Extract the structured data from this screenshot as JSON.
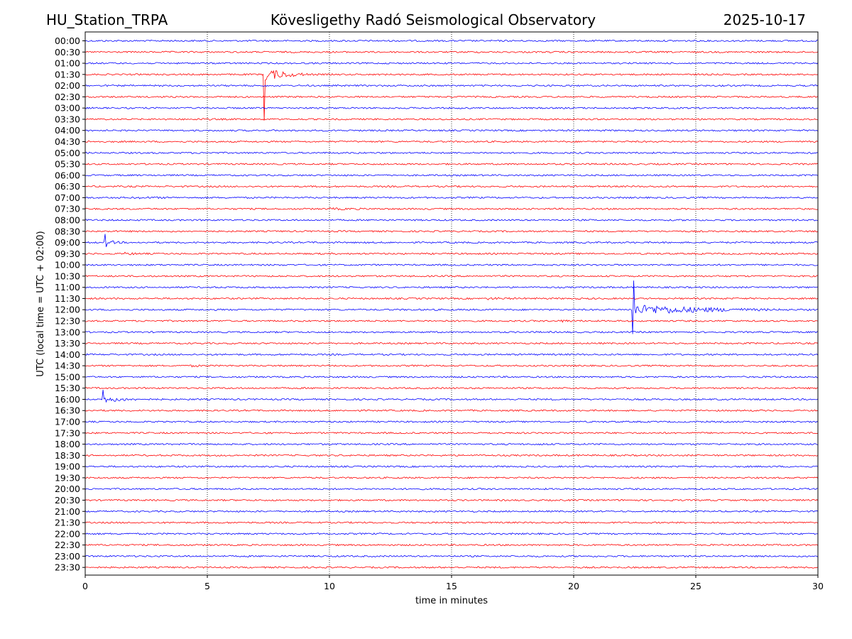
{
  "header": {
    "station": "HU_Station_TRPA",
    "observatory": "Kövesligethy Radó Seismological Observatory",
    "date": "2025-10-17"
  },
  "chart_data": {
    "type": "line",
    "title": "Kövesligethy Radó Seismological Observatory",
    "xlabel": "time in minutes",
    "ylabel": "UTC (local time = UTC + 02:00)",
    "xlim": [
      0,
      30
    ],
    "x_ticks": [
      0,
      5,
      10,
      15,
      20,
      25,
      30
    ],
    "x_tick_labels": [
      "0",
      "5",
      "10",
      "15",
      "20",
      "25",
      "30"
    ],
    "vertical_gridlines": [
      5,
      10,
      15,
      20,
      25
    ],
    "trace_colors": [
      "#0000ff",
      "#ff0000"
    ],
    "row_labels": [
      "00:00",
      "00:30",
      "01:00",
      "01:30",
      "02:00",
      "02:30",
      "03:00",
      "03:30",
      "04:00",
      "04:30",
      "05:00",
      "05:30",
      "06:00",
      "06:30",
      "07:00",
      "07:30",
      "08:00",
      "08:30",
      "09:00",
      "09:30",
      "10:00",
      "10:30",
      "11:00",
      "11:30",
      "12:00",
      "12:30",
      "13:00",
      "13:30",
      "14:00",
      "14:30",
      "15:00",
      "15:30",
      "16:00",
      "16:30",
      "17:00",
      "17:30",
      "18:00",
      "18:30",
      "19:00",
      "19:30",
      "20:00",
      "20:30",
      "21:00",
      "21:30",
      "22:00",
      "22:30",
      "23:00",
      "23:30"
    ],
    "events": [
      {
        "row": "01:30",
        "start_min": 7.3,
        "amplitude": 5.5,
        "spike": 8.0,
        "coda_min": 2.5
      },
      {
        "row": "09:00",
        "start_min": 0.8,
        "amplitude": 1.6,
        "spike": 1.0,
        "coda_min": 1.2
      },
      {
        "row": "09:30",
        "start_min": 1.5,
        "amplitude": 1.0,
        "coda_min": 1.2
      },
      {
        "row": "12:00",
        "start_min": 22.4,
        "amplitude": 4.5,
        "spike": 4.0,
        "coda_min": 7.5
      },
      {
        "row": "16:00",
        "start_min": 0.7,
        "amplitude": 2.5,
        "spike": 1.8,
        "coda_min": 2.0
      },
      {
        "row": "07:00",
        "start_min": 2.2,
        "amplitude": 0.5,
        "coda_min": 2.0
      },
      {
        "row": "07:30",
        "start_min": 10.0,
        "amplitude": 0.5,
        "coda_min": 2.5
      },
      {
        "row": "11:30",
        "start_min": 16.5,
        "amplitude": 0.6,
        "coda_min": 1.8
      },
      {
        "row": "12:30",
        "start_min": 19.4,
        "amplitude": 0.8,
        "coda_min": 1.5
      },
      {
        "row": "03:30",
        "start_min": 4.5,
        "amplitude": 0.4,
        "coda_min": 1.5
      },
      {
        "row": "14:30",
        "start_min": 4.3,
        "amplitude": 0.5,
        "coda_min": 1.2
      },
      {
        "row": "18:00",
        "start_min": 18.5,
        "amplitude": 0.4,
        "coda_min": 1.0
      },
      {
        "row": "04:30",
        "start_min": 0.0,
        "amplitude": 0.4,
        "coda_min": 1.0
      },
      {
        "row": "20:30",
        "start_min": 9.9,
        "amplitude": 0.4,
        "coda_min": 0.6
      }
    ]
  }
}
